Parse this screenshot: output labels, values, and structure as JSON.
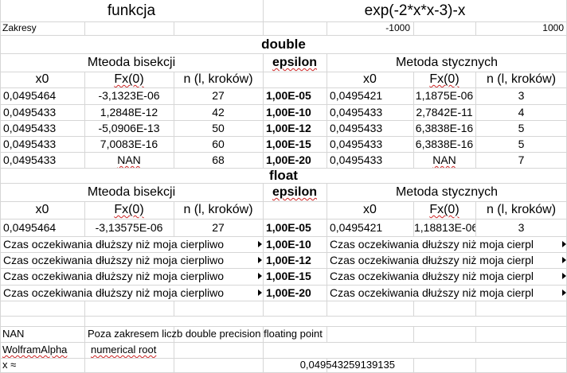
{
  "header": {
    "label": "funkcja",
    "formula": "exp(-2*x*x-3)-x"
  },
  "ranges": {
    "label": "Zakresy",
    "min": "-1000",
    "max": "1000"
  },
  "double": {
    "title": "double",
    "bisection_title": "Mteoda bisekcji",
    "epsilon_title": "epsilon",
    "newton_title": "Metoda stycznych",
    "col_x0": "x0",
    "col_fx": "Fx(0)",
    "col_n": "n (l, kroków)",
    "rows": [
      {
        "bx": "0,0495464",
        "bfx": "-3,1323E-06",
        "bn": "27",
        "eps": "1,00E-05",
        "nx": "0,0495421",
        "nfx": "1,1875E-06",
        "nn": "3"
      },
      {
        "bx": "0,0495433",
        "bfx": "1,2848E-12",
        "bn": "42",
        "eps": "1,00E-10",
        "nx": "0,0495433",
        "nfx": "2,7842E-11",
        "nn": "4"
      },
      {
        "bx": "0,0495433",
        "bfx": "-5,0906E-13",
        "bn": "50",
        "eps": "1,00E-12",
        "nx": "0,0495433",
        "nfx": "6,3838E-16",
        "nn": "5"
      },
      {
        "bx": "0,0495433",
        "bfx": "7,0083E-16",
        "bn": "60",
        "eps": "1,00E-15",
        "nx": "0,0495433",
        "nfx": "6,3838E-16",
        "nn": "5"
      },
      {
        "bx": "0,0495433",
        "bfx": "NAN",
        "bn": "68",
        "eps": "1,00E-20",
        "nx": "0,0495433",
        "nfx": "NAN",
        "nn": "7"
      }
    ]
  },
  "float": {
    "title": "float",
    "bisection_title": "Mteoda bisekcji",
    "epsilon_title": "epsilon",
    "newton_title": "Metoda stycznych",
    "col_x0": "x0",
    "col_fx": "Fx(0)",
    "col_n": "n (l, kroków)",
    "first_row": {
      "bx": "0,0495464",
      "bfx": "-3,13575E-06",
      "bn": "27",
      "eps": "1,00E-05",
      "nx": "0,0495421",
      "nfx": "1,18813E-06",
      "nn": "3"
    },
    "wait_rows": [
      {
        "left": "Czas oczekiwania dłuższy niż moja cierpliwo",
        "eps": "1,00E-10",
        "right": "Czas oczekiwania dłuższy niż moja cierpl"
      },
      {
        "left": "Czas oczekiwania dłuższy niż moja cierpliwo",
        "eps": "1,00E-12",
        "right": "Czas oczekiwania dłuższy niż moja cierpl"
      },
      {
        "left": "Czas oczekiwania dłuższy niż moja cierpliwo",
        "eps": "1,00E-15",
        "right": "Czas oczekiwania dłuższy niż moja cierpl"
      },
      {
        "left": "Czas oczekiwania dłuższy niż moja cierpliwo",
        "eps": "1,00E-20",
        "right": "Czas oczekiwania dłuższy niż moja cierpl"
      }
    ]
  },
  "notes": {
    "nan_key": "NAN",
    "nan_text": "Poza zakresem liczb double precision floating point",
    "wolfram_key": "WolframAlpha",
    "wolfram_text": "numerical root",
    "approx_key": "x  ≈",
    "approx_value": "0,049543259139135"
  },
  "icons": {
    "overflow_marker": "overflow-arrow-icon"
  }
}
